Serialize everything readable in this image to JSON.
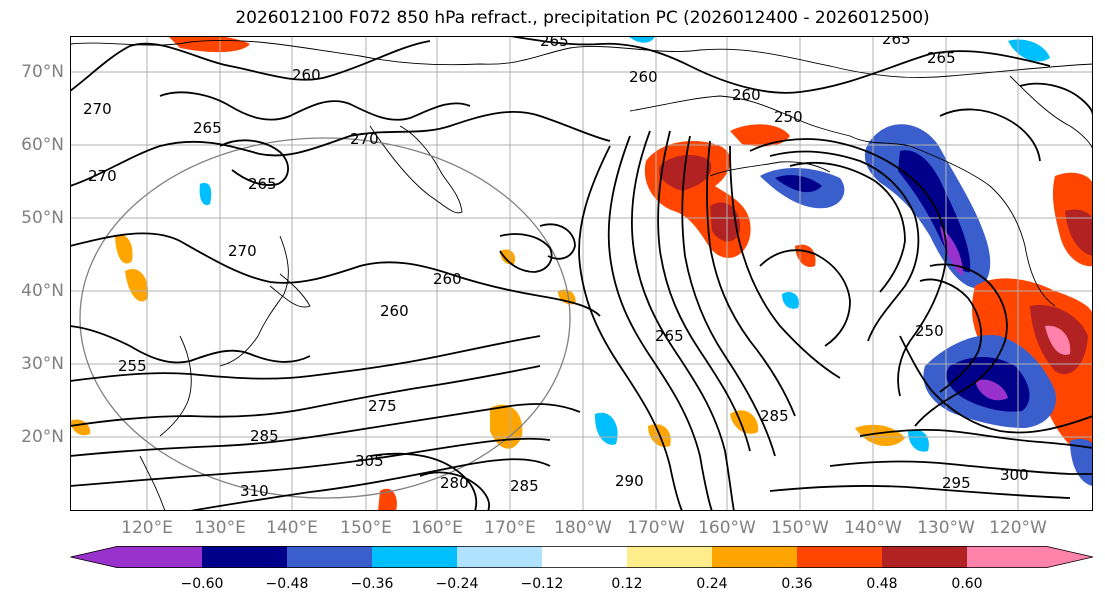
{
  "title": "2026012100 F072 850 hPa refract., precipitation PC (2026012400 - 2026012500)",
  "lat_labels": [
    "70°N",
    "60°N",
    "50°N",
    "40°N",
    "30°N",
    "20°N"
  ],
  "lon_labels": [
    "120°E",
    "130°E",
    "140°E",
    "150°E",
    "160°E",
    "170°E",
    "180°W",
    "170°W",
    "160°W",
    "150°W",
    "140°W",
    "130°W",
    "120°W"
  ],
  "colorbar": {
    "ticks": [
      "−0.60",
      "−0.48",
      "−0.36",
      "−0.24",
      "−0.12",
      "0.12",
      "0.24",
      "0.36",
      "0.48",
      "0.60"
    ],
    "colors": [
      "#9932cc",
      "#00008b",
      "#3a5fcd",
      "#00bfff",
      "#b0e2ff",
      "#ffffff",
      "#ffec8b",
      "#ffa500",
      "#ff4500",
      "#b22222",
      "#ff82ab"
    ],
    "under_color": "#9932cc",
    "over_color": "#ff82ab"
  },
  "contour_labels": [
    "265",
    "265",
    "265",
    "260",
    "260",
    "265",
    "270",
    "270",
    "250",
    "265",
    "270",
    "270",
    "260",
    "260",
    "260",
    "265",
    "255",
    "250",
    "275",
    "285",
    "305",
    "310",
    "285",
    "280",
    "285",
    "300",
    "295",
    "290"
  ]
}
